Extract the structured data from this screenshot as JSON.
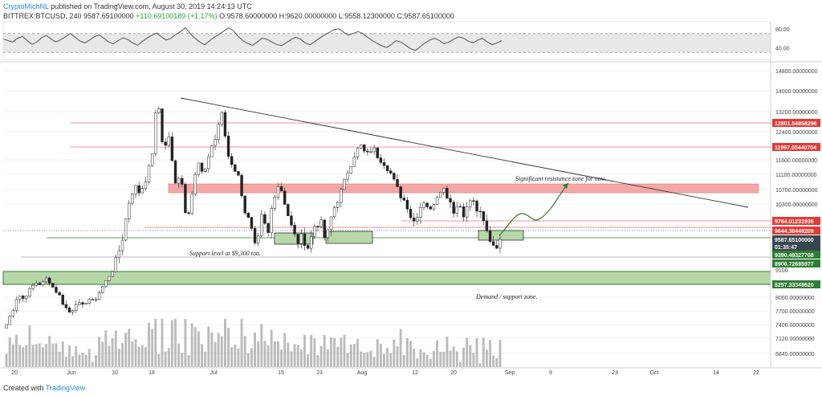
{
  "header": {
    "author": "CryptoMichNL",
    "published": "published on TradingView.com, August 30, 2019 14:24:13 UTC",
    "symbol": "BITTREX:BTCUSD, 240",
    "last": "9587.65100000",
    "change": "+110.69100189 (+1.17%)",
    "open": "O:9578.60000000",
    "high": "H:9620.00000000",
    "low": "L:9558.12300000",
    "close": "C:9587.65100000"
  },
  "footer": {
    "created_with": "Created with",
    "brand": "TradingView"
  },
  "colors": {
    "bull": "#26a69a",
    "bear": "#ef5350",
    "candle": "#222222",
    "resistance_zone": "#f4a7a7",
    "support_zone": "#b7d7a8",
    "support_line": "#2e7d32",
    "resistance_line": "#e57373",
    "trend_line": "#333333",
    "volume": "#9e9e9e"
  },
  "chart_data": [
    {
      "type": "line",
      "name": "RSI panel",
      "ylim": [
        15,
        95
      ],
      "ticks": [
        "80.00",
        "40.00"
      ],
      "band": [
        30,
        70
      ],
      "values": [
        58,
        55,
        52,
        60,
        64,
        55,
        47,
        52,
        61,
        66,
        58,
        52,
        57,
        63,
        70,
        62,
        54,
        50,
        56,
        63,
        67,
        60,
        52,
        48,
        55,
        61,
        57,
        50,
        45,
        53,
        60,
        66,
        71,
        63,
        56,
        60,
        68,
        74,
        82,
        70,
        60,
        52,
        46,
        54,
        62,
        68,
        75,
        82,
        76,
        64,
        55,
        49,
        45,
        52,
        60,
        58,
        52,
        47,
        44,
        50,
        57,
        62,
        58,
        50,
        46,
        53,
        60,
        67,
        72,
        78,
        80,
        73,
        66,
        70,
        74,
        70,
        62,
        55,
        49,
        44,
        40,
        47,
        55,
        52,
        45,
        38,
        34,
        42,
        50,
        56,
        60,
        55,
        48,
        52,
        58,
        63,
        60,
        54,
        50,
        56,
        60,
        52,
        46,
        50,
        55
      ]
    },
    {
      "type": "candlestick",
      "title": "BITTREX:BTCUSD, 240",
      "x_tick_labels": [
        "20",
        "Jun",
        "10",
        "18",
        "Jul",
        "15",
        "23",
        "Aug",
        "12",
        "20",
        "Sep",
        "9",
        "23",
        "Oct",
        "14",
        "22"
      ],
      "y_tick_labels": [
        "14800.00000000",
        "14000.00000000",
        "13200.00000000",
        "12400.00000000",
        "11600.00000000",
        "11100.00000000",
        "10700.00000000",
        "10300.00000000",
        "9100",
        "8000.00000000",
        "7700.00000000",
        "7400.00000000",
        "7120.00000000",
        "6845.00000000"
      ],
      "price_path": [
        7400,
        7700,
        8100,
        7950,
        8300,
        8600,
        8500,
        8800,
        8400,
        8100,
        7800,
        7650,
        7900,
        7750,
        8000,
        7850,
        8200,
        8600,
        9000,
        9300,
        9700,
        10300,
        10800,
        10600,
        11000,
        11600,
        13800,
        11800,
        12300,
        10800,
        11200,
        9900,
        10700,
        11500,
        11000,
        11900,
        12200,
        13200,
        11800,
        11400,
        11000,
        10200,
        9900,
        9400,
        10100,
        9700,
        10500,
        10900,
        10300,
        9900,
        9600,
        9700,
        9500,
        9900,
        10000,
        9600,
        10100,
        10400,
        10800,
        11300,
        11800,
        12000,
        11700,
        11950,
        11700,
        11500,
        11200,
        10800,
        10500,
        10300,
        9950,
        10200,
        10400,
        10150,
        10500,
        10800,
        10500,
        10200,
        10300,
        10100,
        10450,
        10200,
        10000,
        9700,
        9550,
        9590
      ],
      "price_labels": [
        {
          "text": "12801.54858296",
          "color": "#e53935"
        },
        {
          "text": "11997.05440704",
          "color": "#e53935"
        },
        {
          "text": "9784.01231936",
          "color": "#e53935"
        },
        {
          "text": "9644.38449209",
          "color": "#e53935"
        },
        {
          "text": "9587.65100000",
          "color": "#37474f"
        },
        {
          "text": "01:35:47",
          "color": "#37474f"
        },
        {
          "text": "9390.49327708",
          "color": "#2e7d32"
        },
        {
          "text": "8906.72685977",
          "color": "#2e7d32"
        },
        {
          "text": "8257.33348620",
          "color": "#2e7d32"
        }
      ],
      "levels": {
        "resistance_zone": [
          10600,
          10800
        ],
        "demand_zone": [
          8257,
          8600
        ]
      },
      "annotations": [
        {
          "text": "Significant resistance zone for now."
        },
        {
          "text": "Support level at $9,300 too."
        },
        {
          "text": "Demand / support zone."
        }
      ],
      "grid": true
    }
  ]
}
